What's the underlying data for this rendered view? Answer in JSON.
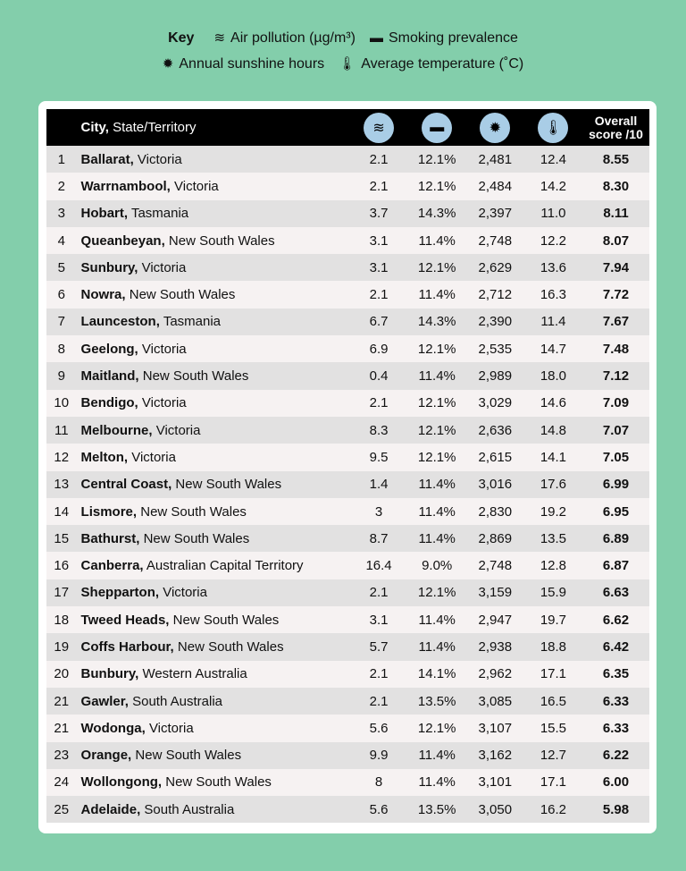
{
  "key": {
    "title": "Key",
    "items": [
      {
        "icon": "wind-icon",
        "glyph": "≋",
        "label": "Air pollution (µg/m³)"
      },
      {
        "icon": "cigarette-icon",
        "glyph": "▬",
        "label": "Smoking prevalence"
      },
      {
        "icon": "sun-icon",
        "glyph": "✹",
        "label": "Annual sunshine hours"
      },
      {
        "icon": "thermometer-icon",
        "glyph": "🌡",
        "label": "Average temperature (˚C)"
      }
    ]
  },
  "header": {
    "city": "City,",
    "state": "State/Territory",
    "score1": "Overall",
    "score2": "score /10"
  },
  "colors": {
    "background": "#83ceab",
    "header": "#000000",
    "icon_circle": "#a9cde6"
  },
  "rows": [
    {
      "rank": "1",
      "city": "Ballarat,",
      "state": "Victoria",
      "air": "2.1",
      "smoking": "12.1%",
      "sun": "2,481",
      "temp": "12.4",
      "score": "8.55"
    },
    {
      "rank": "2",
      "city": "Warrnambool,",
      "state": "Victoria",
      "air": "2.1",
      "smoking": "12.1%",
      "sun": "2,484",
      "temp": "14.2",
      "score": "8.30"
    },
    {
      "rank": "3",
      "city": "Hobart,",
      "state": "Tasmania",
      "air": "3.7",
      "smoking": "14.3%",
      "sun": "2,397",
      "temp": "11.0",
      "score": "8.11"
    },
    {
      "rank": "4",
      "city": "Queanbeyan,",
      "state": "New South Wales",
      "air": "3.1",
      "smoking": "11.4%",
      "sun": "2,748",
      "temp": "12.2",
      "score": "8.07"
    },
    {
      "rank": "5",
      "city": "Sunbury,",
      "state": "Victoria",
      "air": "3.1",
      "smoking": "12.1%",
      "sun": "2,629",
      "temp": "13.6",
      "score": "7.94"
    },
    {
      "rank": "6",
      "city": "Nowra,",
      "state": "New South Wales",
      "air": "2.1",
      "smoking": "11.4%",
      "sun": "2,712",
      "temp": "16.3",
      "score": "7.72"
    },
    {
      "rank": "7",
      "city": "Launceston,",
      "state": "Tasmania",
      "air": "6.7",
      "smoking": "14.3%",
      "sun": "2,390",
      "temp": "11.4",
      "score": "7.67"
    },
    {
      "rank": "8",
      "city": "Geelong,",
      "state": "Victoria",
      "air": "6.9",
      "smoking": "12.1%",
      "sun": "2,535",
      "temp": "14.7",
      "score": "7.48"
    },
    {
      "rank": "9",
      "city": "Maitland,",
      "state": "New South Wales",
      "air": "0.4",
      "smoking": "11.4%",
      "sun": "2,989",
      "temp": "18.0",
      "score": "7.12"
    },
    {
      "rank": "10",
      "city": "Bendigo,",
      "state": "Victoria",
      "air": "2.1",
      "smoking": "12.1%",
      "sun": "3,029",
      "temp": "14.6",
      "score": "7.09"
    },
    {
      "rank": "11",
      "city": "Melbourne,",
      "state": "Victoria",
      "air": "8.3",
      "smoking": "12.1%",
      "sun": "2,636",
      "temp": "14.8",
      "score": "7.07"
    },
    {
      "rank": "12",
      "city": "Melton,",
      "state": "Victoria",
      "air": "9.5",
      "smoking": "12.1%",
      "sun": "2,615",
      "temp": "14.1",
      "score": "7.05"
    },
    {
      "rank": "13",
      "city": "Central Coast,",
      "state": "New South Wales",
      "air": "1.4",
      "smoking": "11.4%",
      "sun": "3,016",
      "temp": "17.6",
      "score": "6.99"
    },
    {
      "rank": "14",
      "city": "Lismore,",
      "state": "New South Wales",
      "air": "3",
      "smoking": "11.4%",
      "sun": "2,830",
      "temp": "19.2",
      "score": "6.95"
    },
    {
      "rank": "15",
      "city": "Bathurst,",
      "state": "New South Wales",
      "air": "8.7",
      "smoking": "11.4%",
      "sun": "2,869",
      "temp": "13.5",
      "score": "6.89"
    },
    {
      "rank": "16",
      "city": "Canberra,",
      "state": "Australian Capital Territory",
      "air": "16.4",
      "smoking": "9.0%",
      "sun": "2,748",
      "temp": "12.8",
      "score": "6.87"
    },
    {
      "rank": "17",
      "city": "Shepparton,",
      "state": "Victoria",
      "air": "2.1",
      "smoking": "12.1%",
      "sun": "3,159",
      "temp": "15.9",
      "score": "6.63"
    },
    {
      "rank": "18",
      "city": "Tweed Heads,",
      "state": "New South Wales",
      "air": "3.1",
      "smoking": "11.4%",
      "sun": "2,947",
      "temp": "19.7",
      "score": "6.62"
    },
    {
      "rank": "19",
      "city": "Coffs Harbour,",
      "state": "New South Wales",
      "air": "5.7",
      "smoking": "11.4%",
      "sun": "2,938",
      "temp": "18.8",
      "score": "6.42"
    },
    {
      "rank": "20",
      "city": "Bunbury,",
      "state": "Western Australia",
      "air": "2.1",
      "smoking": "14.1%",
      "sun": "2,962",
      "temp": "17.1",
      "score": "6.35"
    },
    {
      "rank": "21",
      "city": "Gawler,",
      "state": "South Australia",
      "air": "2.1",
      "smoking": "13.5%",
      "sun": "3,085",
      "temp": "16.5",
      "score": "6.33"
    },
    {
      "rank": "21",
      "city": "Wodonga,",
      "state": "Victoria",
      "air": "5.6",
      "smoking": "12.1%",
      "sun": "3,107",
      "temp": "15.5",
      "score": "6.33"
    },
    {
      "rank": "23",
      "city": "Orange,",
      "state": "New South Wales",
      "air": "9.9",
      "smoking": "11.4%",
      "sun": "3,162",
      "temp": "12.7",
      "score": "6.22"
    },
    {
      "rank": "24",
      "city": "Wollongong,",
      "state": "New South Wales",
      "air": "8",
      "smoking": "11.4%",
      "sun": "3,101",
      "temp": "17.1",
      "score": "6.00"
    },
    {
      "rank": "25",
      "city": "Adelaide,",
      "state": "South Australia",
      "air": "5.6",
      "smoking": "13.5%",
      "sun": "3,050",
      "temp": "16.2",
      "score": "5.98"
    }
  ]
}
